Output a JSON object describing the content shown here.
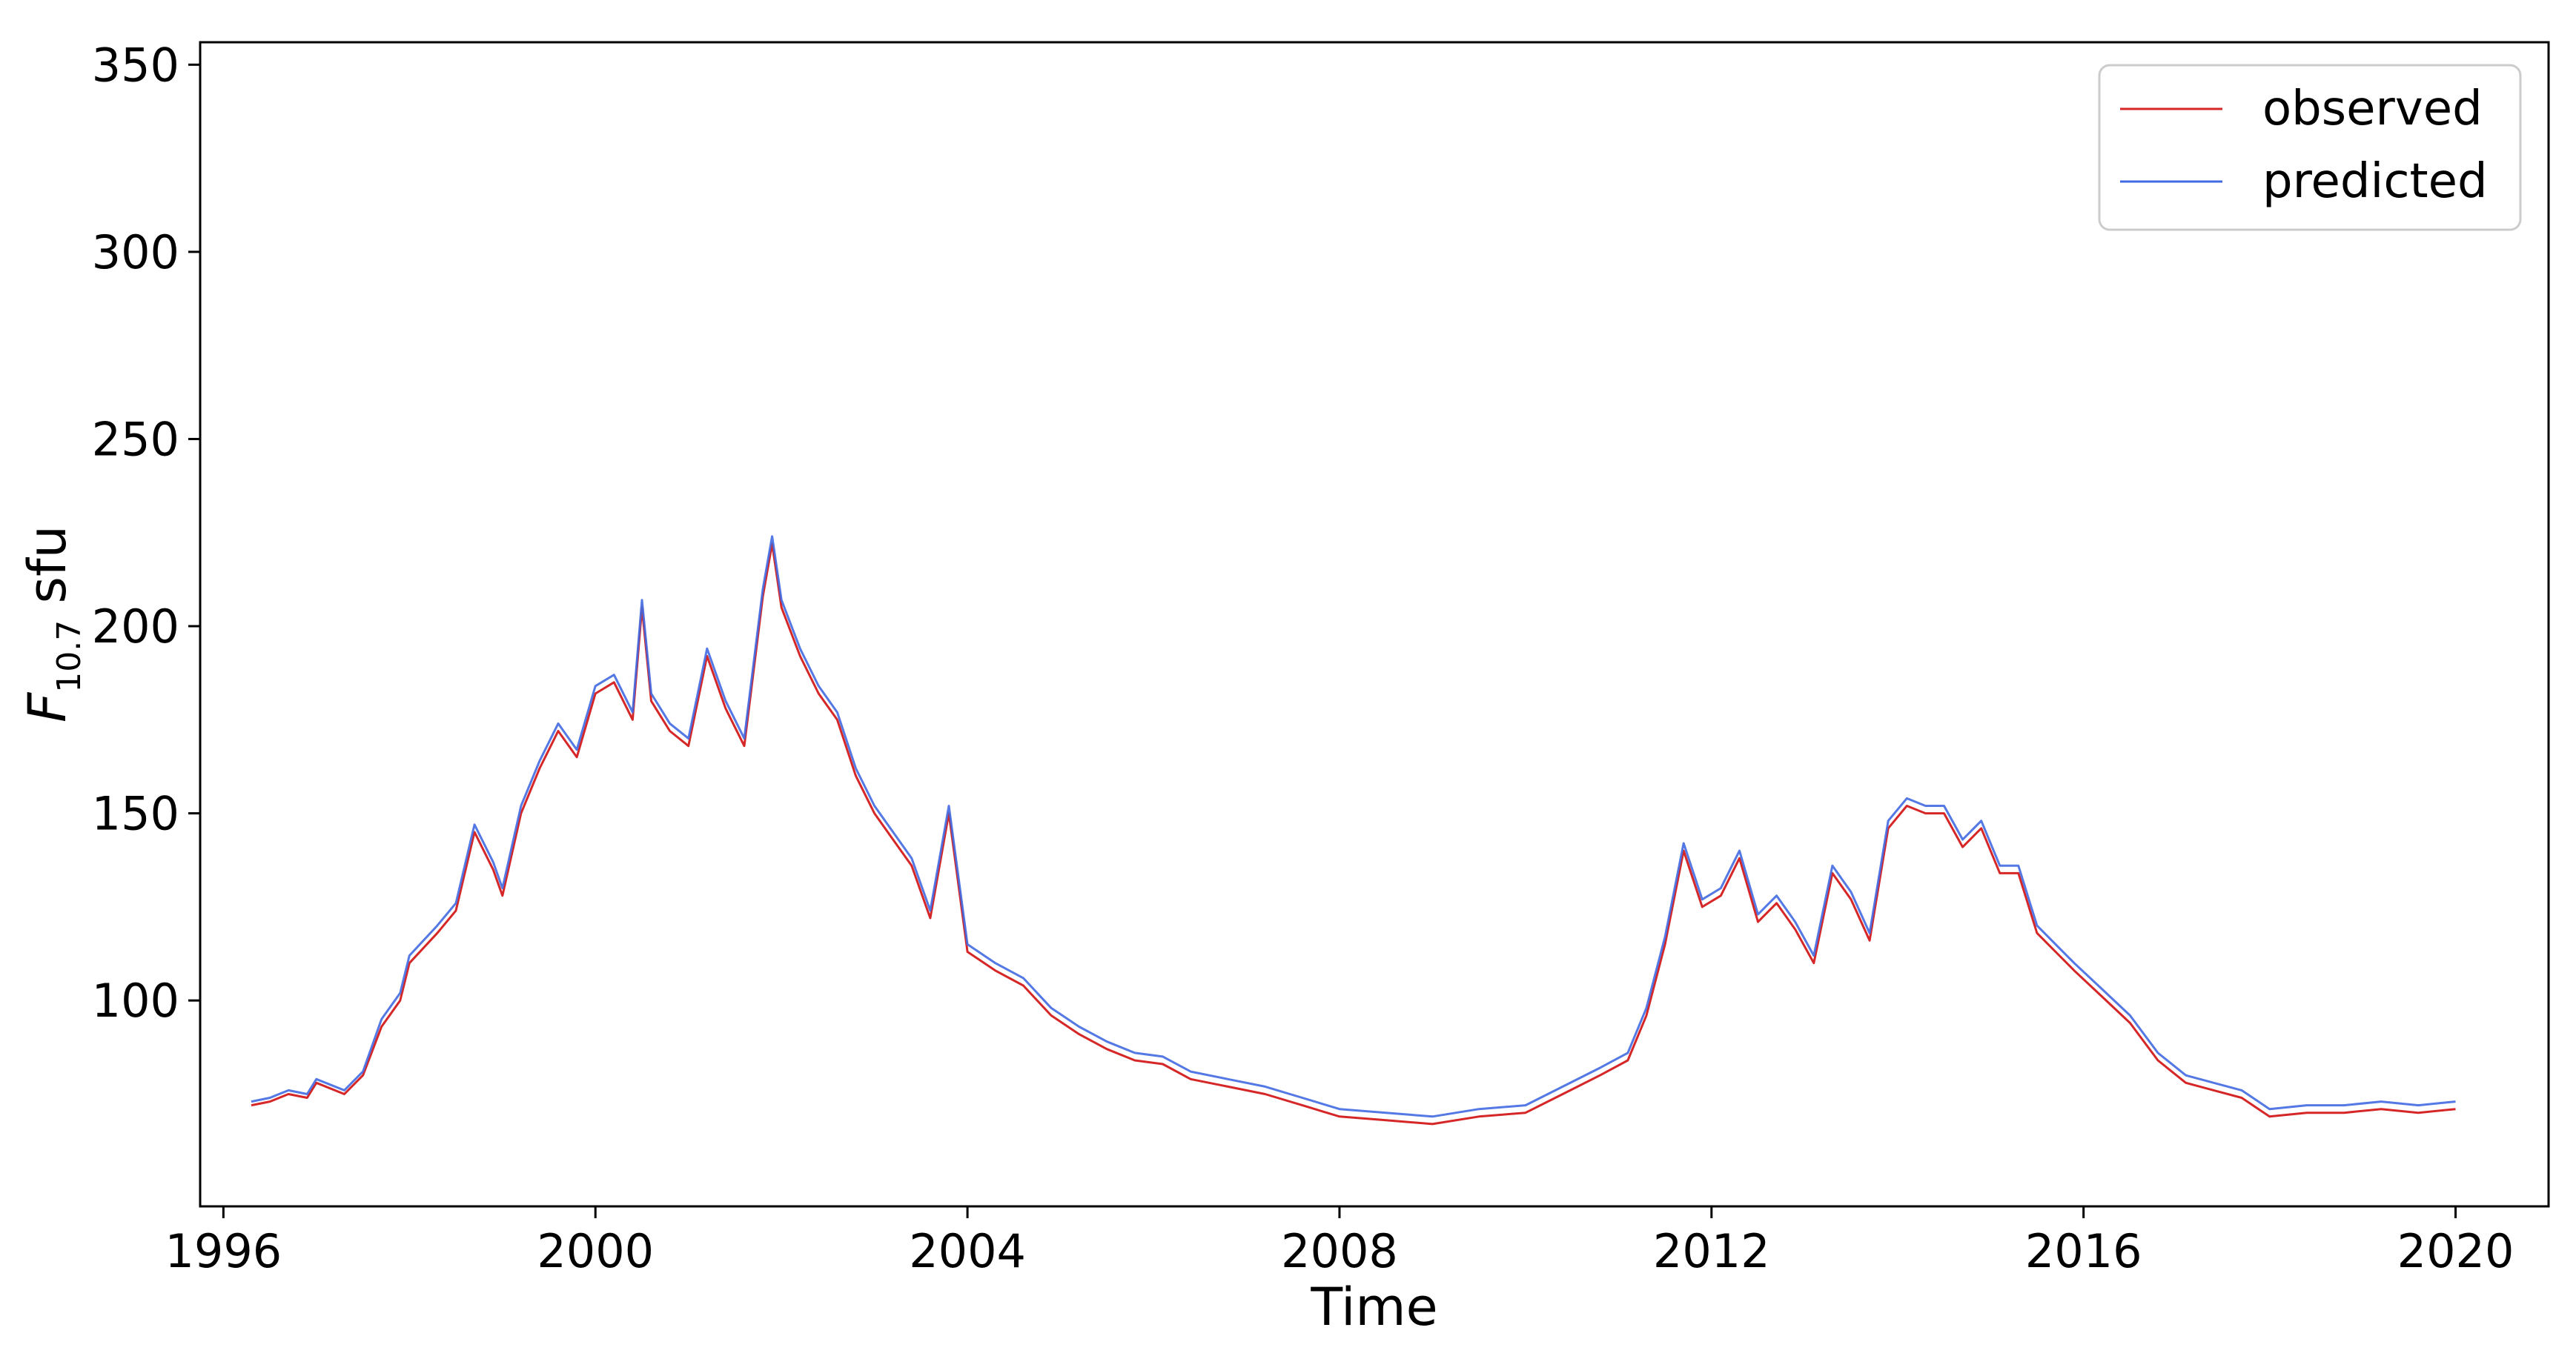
{
  "chart_data": {
    "type": "line",
    "title": "",
    "xlabel": "Time",
    "ylabel": {
      "base": "F",
      "subscript": "10.7",
      "suffix": " sfu"
    },
    "xlim": [
      1995.75,
      2021.0
    ],
    "ylim": [
      45,
      356
    ],
    "x_ticks": [
      1996,
      2000,
      2004,
      2008,
      2012,
      2016,
      2020
    ],
    "y_ticks": [
      100,
      150,
      200,
      250,
      300,
      350
    ],
    "grid": false,
    "legend_position": "top-right",
    "colors": {
      "observed": "#d62728",
      "predicted": "#4169e1"
    },
    "series": [
      {
        "name": "observed",
        "x": [
          1996.3,
          1996.5,
          1996.7,
          1996.9,
          1997.0,
          1997.3,
          1997.5,
          1997.7,
          1997.9,
          1998.0,
          1998.3,
          1998.5,
          1998.7,
          1998.9,
          1999.0,
          1999.2,
          1999.4,
          1999.6,
          1999.8,
          2000.0,
          2000.2,
          2000.4,
          2000.5,
          2000.6,
          2000.8,
          2001.0,
          2001.2,
          2001.4,
          2001.6,
          2001.8,
          2001.9,
          2002.0,
          2002.2,
          2002.4,
          2002.6,
          2002.8,
          2003.0,
          2003.2,
          2003.4,
          2003.6,
          2003.8,
          2004.0,
          2004.3,
          2004.6,
          2004.9,
          2005.2,
          2005.5,
          2005.8,
          2006.1,
          2006.4,
          2006.8,
          2007.2,
          2007.6,
          2008.0,
          2008.5,
          2009.0,
          2009.5,
          2010.0,
          2010.4,
          2010.8,
          2011.1,
          2011.3,
          2011.5,
          2011.7,
          2011.9,
          2012.1,
          2012.3,
          2012.5,
          2012.7,
          2012.9,
          2013.1,
          2013.3,
          2013.5,
          2013.7,
          2013.9,
          2014.1,
          2014.3,
          2014.5,
          2014.7,
          2014.9,
          2015.1,
          2015.3,
          2015.5,
          2015.7,
          2015.9,
          2016.2,
          2016.5,
          2016.8,
          2017.1,
          2017.4,
          2017.7,
          2018.0,
          2018.4,
          2018.8,
          2019.2,
          2019.6,
          2020.0
        ],
        "y": [
          72,
          73,
          75,
          74,
          78,
          75,
          80,
          93,
          100,
          110,
          118,
          124,
          145,
          135,
          128,
          150,
          162,
          172,
          165,
          182,
          185,
          175,
          205,
          180,
          172,
          168,
          192,
          178,
          168,
          208,
          222,
          205,
          192,
          182,
          175,
          160,
          150,
          143,
          136,
          122,
          150,
          113,
          108,
          104,
          96,
          91,
          87,
          84,
          83,
          79,
          77,
          75,
          72,
          69,
          68,
          67,
          69,
          70,
          75,
          80,
          84,
          96,
          115,
          140,
          125,
          128,
          138,
          121,
          126,
          119,
          110,
          134,
          127,
          116,
          146,
          152,
          150,
          150,
          141,
          146,
          134,
          134,
          118,
          113,
          108,
          101,
          94,
          84,
          78,
          76,
          74,
          69,
          70,
          70,
          71,
          70,
          71
        ]
      },
      {
        "name": "predicted",
        "x": [
          1996.3,
          1996.5,
          1996.7,
          1996.9,
          1997.0,
          1997.3,
          1997.5,
          1997.7,
          1997.9,
          1998.0,
          1998.3,
          1998.5,
          1998.7,
          1998.9,
          1999.0,
          1999.2,
          1999.4,
          1999.6,
          1999.8,
          2000.0,
          2000.2,
          2000.4,
          2000.5,
          2000.6,
          2000.8,
          2001.0,
          2001.2,
          2001.4,
          2001.6,
          2001.8,
          2001.9,
          2002.0,
          2002.2,
          2002.4,
          2002.6,
          2002.8,
          2003.0,
          2003.2,
          2003.4,
          2003.6,
          2003.8,
          2004.0,
          2004.3,
          2004.6,
          2004.9,
          2005.2,
          2005.5,
          2005.8,
          2006.1,
          2006.4,
          2006.8,
          2007.2,
          2007.6,
          2008.0,
          2008.5,
          2009.0,
          2009.5,
          2010.0,
          2010.4,
          2010.8,
          2011.1,
          2011.3,
          2011.5,
          2011.7,
          2011.9,
          2012.1,
          2012.3,
          2012.5,
          2012.7,
          2012.9,
          2013.1,
          2013.3,
          2013.5,
          2013.7,
          2013.9,
          2014.1,
          2014.3,
          2014.5,
          2014.7,
          2014.9,
          2015.1,
          2015.3,
          2015.5,
          2015.7,
          2015.9,
          2016.2,
          2016.5,
          2016.8,
          2017.1,
          2017.4,
          2017.7,
          2018.0,
          2018.4,
          2018.8,
          2019.2,
          2019.6,
          2020.0
        ],
        "y": [
          73,
          74,
          76,
          75,
          79,
          76,
          81,
          95,
          102,
          112,
          120,
          126,
          147,
          137,
          130,
          152,
          164,
          174,
          167,
          184,
          187,
          177,
          207,
          182,
          174,
          170,
          194,
          180,
          170,
          210,
          224,
          207,
          194,
          184,
          177,
          162,
          152,
          145,
          138,
          124,
          152,
          115,
          110,
          106,
          98,
          93,
          89,
          86,
          85,
          81,
          79,
          77,
          74,
          71,
          70,
          69,
          71,
          72,
          77,
          82,
          86,
          98,
          117,
          142,
          127,
          130,
          140,
          123,
          128,
          121,
          112,
          136,
          129,
          118,
          148,
          154,
          152,
          152,
          143,
          148,
          136,
          136,
          120,
          115,
          110,
          103,
          96,
          86,
          80,
          78,
          76,
          71,
          72,
          72,
          73,
          72,
          73
        ]
      }
    ],
    "annotations": []
  }
}
